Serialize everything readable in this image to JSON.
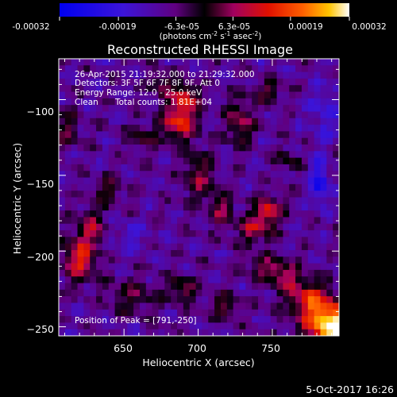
{
  "chart_data": {
    "type": "heatmap",
    "title": "Reconstructed RHESSI Image",
    "xlabel": "Heliocentric X (arcsec)",
    "ylabel": "Heliocentric Y (arcsec)",
    "xlim": [
      606,
      795
    ],
    "ylim": [
      -256,
      -73
    ],
    "x_ticks": [
      650,
      700,
      750
    ],
    "y_ticks": [
      -100,
      -150,
      -200,
      -250
    ],
    "x_tick_labels": [
      "650",
      "700",
      "750"
    ],
    "y_tick_labels": [
      "−100",
      "−150",
      "−200",
      "−250"
    ],
    "colorbar": {
      "range": [
        -0.00032,
        0.00032
      ],
      "tick_values": [
        -0.00032,
        -0.00019,
        -6.3e-05,
        6.3e-05,
        0.00019,
        0.00032
      ],
      "tick_labels": [
        "-0.00032",
        "-0.00019",
        "-6.3e-05",
        "6.3e-05",
        "0.00019",
        "0.00032"
      ],
      "unit_prefix": "(photons cm",
      "unit_exp1": "-2",
      "unit_mid1": " s",
      "unit_exp2": "-1",
      "unit_mid2": " asec",
      "unit_exp3": "-2",
      "unit_suffix": ")"
    },
    "annotations": {
      "time_range": "26-Apr-2015 21:19:32.000 to 21:29:32.000",
      "detectors": "Detectors: 3F 5F 6F 7F 8F 9F, Att 0",
      "energy": "Energy Range: 12.0 - 25.0 keV",
      "clean": "Clean",
      "total_counts": "Total counts: 1.81E+04",
      "peak": "Position of Peak = [791,-250]"
    },
    "peak": {
      "x": 791,
      "y": -250
    },
    "grid": false,
    "image": {
      "cols": 45,
      "rows": 42,
      "vmin": -0.00032,
      "vmax": 0.00032,
      "background": -9e-05,
      "noise_amplitude": 5.5e-05,
      "features": [
        {
          "x": 790,
          "y": -249,
          "sx": 12,
          "sy": 10,
          "amp": 0.00042
        },
        {
          "x": 775,
          "y": -232,
          "sx": 10,
          "sy": 8,
          "amp": 0.00022
        },
        {
          "x": 758,
          "y": -218,
          "sx": 8,
          "sy": 6,
          "amp": 0.00016
        },
        {
          "x": 745,
          "y": -210,
          "sx": 9,
          "sy": 5,
          "amp": 0.00012
        },
        {
          "x": 687,
          "y": -114,
          "sx": 8,
          "sy": 9,
          "amp": 0.00025
        },
        {
          "x": 692,
          "y": -98,
          "sx": 6,
          "sy": 6,
          "amp": 0.00018
        },
        {
          "x": 676,
          "y": -90,
          "sx": 6,
          "sy": 5,
          "amp": 0.00014
        },
        {
          "x": 700,
          "y": -150,
          "sx": 7,
          "sy": 10,
          "amp": 0.00015
        },
        {
          "x": 715,
          "y": -172,
          "sx": 6,
          "sy": 8,
          "amp": 0.00014
        },
        {
          "x": 748,
          "y": -173,
          "sx": 6,
          "sy": 6,
          "amp": 0.00021
        },
        {
          "x": 738,
          "y": -185,
          "sx": 8,
          "sy": 7,
          "amp": 0.00017
        },
        {
          "x": 728,
          "y": -115,
          "sx": 6,
          "sy": 10,
          "amp": 0.00016
        },
        {
          "x": 747,
          "y": -95,
          "sx": 7,
          "sy": 5,
          "amp": 0.00012
        },
        {
          "x": 760,
          "y": -140,
          "sx": 5,
          "sy": 5,
          "amp": 0.0001
        },
        {
          "x": 620,
          "y": -205,
          "sx": 8,
          "sy": 10,
          "amp": 0.00022
        },
        {
          "x": 628,
          "y": -185,
          "sx": 6,
          "sy": 8,
          "amp": 0.00016
        },
        {
          "x": 640,
          "y": -160,
          "sx": 7,
          "sy": 7,
          "amp": 0.00011
        },
        {
          "x": 655,
          "y": -230,
          "sx": 12,
          "sy": 8,
          "amp": 0.0001
        },
        {
          "x": 690,
          "y": -225,
          "sx": 7,
          "sy": 6,
          "amp": 0.00014
        },
        {
          "x": 718,
          "y": -236,
          "sx": 6,
          "sy": 6,
          "amp": 0.00012
        },
        {
          "x": 662,
          "y": -125,
          "sx": 7,
          "sy": 6,
          "amp": 0.0001
        },
        {
          "x": 612,
          "y": -120,
          "sx": 6,
          "sy": 8,
          "amp": 0.00012
        },
        {
          "x": 782,
          "y": -155,
          "sx": 4,
          "sy": 10,
          "amp": -0.00018
        },
        {
          "x": 785,
          "y": -110,
          "sx": 7,
          "sy": 14,
          "amp": -8e-05
        },
        {
          "x": 655,
          "y": -190,
          "sx": 8,
          "sy": 8,
          "amp": -6e-05
        }
      ]
    }
  },
  "footer": {
    "date": "5-Oct-2017 16:26"
  }
}
